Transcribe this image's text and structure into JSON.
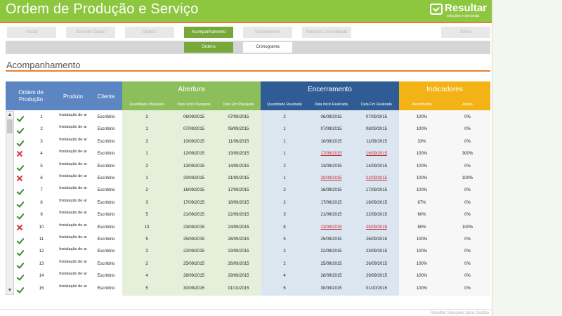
{
  "header": {
    "title": "Ordem de Produção e Serviço",
    "logo_name": "Resultar",
    "logo_tag": "soluções e demanda"
  },
  "nav": {
    "items": [
      {
        "label": "Inicial",
        "active": false
      },
      {
        "label": "Base de Dados",
        "active": false
      },
      {
        "label": "Ordens",
        "active": false
      },
      {
        "label": "Acompanhamento",
        "active": true
      },
      {
        "label": "Desempenho",
        "active": false
      },
      {
        "label": "Relatório Consolidado",
        "active": false
      },
      {
        "label": "Sobre",
        "active": false
      }
    ]
  },
  "subnav": {
    "items": [
      {
        "label": "Ordens",
        "active": true
      },
      {
        "label": "Cronograma",
        "active": false
      }
    ]
  },
  "section": {
    "title": "Acompanhamento"
  },
  "table": {
    "headers": {
      "ordem": "Ordem de Produção",
      "produto": "Produto",
      "cliente": "Cliente",
      "abertura": "Abertura",
      "encerramento": "Encerramento",
      "indicadores": "Indicadores",
      "qtd_planejada": "Quantidade Planejada",
      "inicio_planejada": "Data Inicio Planejada",
      "fim_planejada": "Data Fim Planejada",
      "qtd_realizada": "Quantidade Realizada",
      "inicio_realizada": "Data Inicio Realizada",
      "fim_realizada": "Data Fim Realizada",
      "atendimento": "Atendimento",
      "atraso": "Atraso"
    },
    "rows": [
      {
        "status": "ok",
        "ordem": "1",
        "produto": "Instalação de ar",
        "cliente": "Escritório",
        "qp": "2",
        "dip": "06/09/2015",
        "dfp": "07/09/2015",
        "qr": "2",
        "dir": "06/09/2015",
        "dfr": "07/09/2015",
        "atend": "100%",
        "atraso": "0%",
        "late": false
      },
      {
        "status": "ok",
        "ordem": "2",
        "produto": "Instalação de ar",
        "cliente": "Escritório",
        "qp": "1",
        "dip": "07/09/2015",
        "dfp": "08/09/2015",
        "qr": "1",
        "dir": "07/09/2015",
        "dfr": "08/09/2015",
        "atend": "100%",
        "atraso": "0%",
        "late": false
      },
      {
        "status": "ok",
        "ordem": "3",
        "produto": "Instalação de ar",
        "cliente": "Escritório",
        "qp": "3",
        "dip": "10/09/2015",
        "dfp": "11/09/2015",
        "qr": "1",
        "dir": "10/09/2015",
        "dfr": "11/09/2015",
        "atend": "33%",
        "atraso": "0%",
        "late": false
      },
      {
        "status": "fail",
        "ordem": "4",
        "produto": "Instalação de ar",
        "cliente": "Escritório",
        "qp": "1",
        "dip": "12/09/2015",
        "dfp": "13/09/2015",
        "qr": "1",
        "dir": "17/09/2015",
        "dfr": "16/09/2015",
        "atend": "100%",
        "atraso": "300%",
        "late": true
      },
      {
        "status": "ok",
        "ordem": "5",
        "produto": "Instalação de ar",
        "cliente": "Escritório",
        "qp": "2",
        "dip": "13/09/2015",
        "dfp": "14/09/2015",
        "qr": "2",
        "dir": "13/09/2015",
        "dfr": "14/09/2015",
        "atend": "100%",
        "atraso": "0%",
        "late": false
      },
      {
        "status": "fail",
        "ordem": "6",
        "produto": "Instalação de ar",
        "cliente": "Escritório",
        "qp": "1",
        "dip": "20/09/2015",
        "dfp": "21/09/2015",
        "qr": "1",
        "dir": "20/09/2015",
        "dfr": "22/09/2015",
        "atend": "100%",
        "atraso": "100%",
        "late": true
      },
      {
        "status": "ok",
        "ordem": "7",
        "produto": "Instalação de ar",
        "cliente": "Escritório",
        "qp": "2",
        "dip": "16/09/2015",
        "dfp": "17/09/2015",
        "qr": "2",
        "dir": "16/09/2015",
        "dfr": "17/09/2015",
        "atend": "100%",
        "atraso": "0%",
        "late": false
      },
      {
        "status": "ok",
        "ordem": "8",
        "produto": "Instalação de ar",
        "cliente": "Escritório",
        "qp": "3",
        "dip": "17/09/2015",
        "dfp": "18/09/2015",
        "qr": "2",
        "dir": "17/09/2015",
        "dfr": "18/09/2015",
        "atend": "67%",
        "atraso": "0%",
        "late": false
      },
      {
        "status": "ok",
        "ordem": "9",
        "produto": "Instalação de ar",
        "cliente": "Escritório",
        "qp": "5",
        "dip": "21/09/2015",
        "dfp": "22/09/2015",
        "qr": "3",
        "dir": "21/09/2015",
        "dfr": "22/09/2015",
        "atend": "60%",
        "atraso": "0%",
        "late": false
      },
      {
        "status": "fail",
        "ordem": "10",
        "produto": "Instalação de ar",
        "cliente": "Escritório",
        "qp": "10",
        "dip": "23/09/2015",
        "dfp": "24/09/2015",
        "qr": "8",
        "dir": "23/09/2015",
        "dfr": "25/09/2015",
        "atend": "80%",
        "atraso": "100%",
        "late": true
      },
      {
        "status": "ok",
        "ordem": "11",
        "produto": "Instalação de ar",
        "cliente": "Escritório",
        "qp": "5",
        "dip": "25/09/2015",
        "dfp": "26/09/2015",
        "qr": "5",
        "dir": "25/09/2015",
        "dfr": "26/09/2015",
        "atend": "100%",
        "atraso": "0%",
        "late": false
      },
      {
        "status": "ok",
        "ordem": "12",
        "produto": "Instalação de ar",
        "cliente": "Escritório",
        "qp": "2",
        "dip": "22/09/2015",
        "dfp": "23/09/2015",
        "qr": "2",
        "dir": "22/09/2015",
        "dfr": "23/09/2015",
        "atend": "100%",
        "atraso": "0%",
        "late": false
      },
      {
        "status": "ok",
        "ordem": "13",
        "produto": "Instalação de ar",
        "cliente": "Escritório",
        "qp": "2",
        "dip": "25/09/2015",
        "dfp": "26/09/2015",
        "qr": "2",
        "dir": "25/09/2015",
        "dfr": "26/09/2015",
        "atend": "100%",
        "atraso": "0%",
        "late": false
      },
      {
        "status": "ok",
        "ordem": "14",
        "produto": "Instalação de ar",
        "cliente": "Escritório",
        "qp": "4",
        "dip": "28/09/2015",
        "dfp": "29/09/2015",
        "qr": "4",
        "dir": "28/09/2015",
        "dfr": "29/09/2015",
        "atend": "100%",
        "atraso": "0%",
        "late": false
      },
      {
        "status": "ok",
        "ordem": "15",
        "produto": "Instalação de ar",
        "cliente": "Escritório",
        "qp": "5",
        "dip": "30/09/2015",
        "dfp": "01/10/2015",
        "qr": "5",
        "dir": "30/09/2015",
        "dfr": "01/10/2015",
        "atend": "100%",
        "atraso": "0%",
        "late": false
      }
    ]
  },
  "footer": {
    "text": "Resultar Soluções para Gestão"
  },
  "colors": {
    "brand_green": "#8dc63f",
    "accent_orange": "#e97f2d",
    "header_blue": "#5b86c2",
    "abertura_green": "#8cbe5c",
    "encerramento_blue": "#2f5c94",
    "indicadores_gold": "#f3b316",
    "late_red": "#c0282f"
  }
}
